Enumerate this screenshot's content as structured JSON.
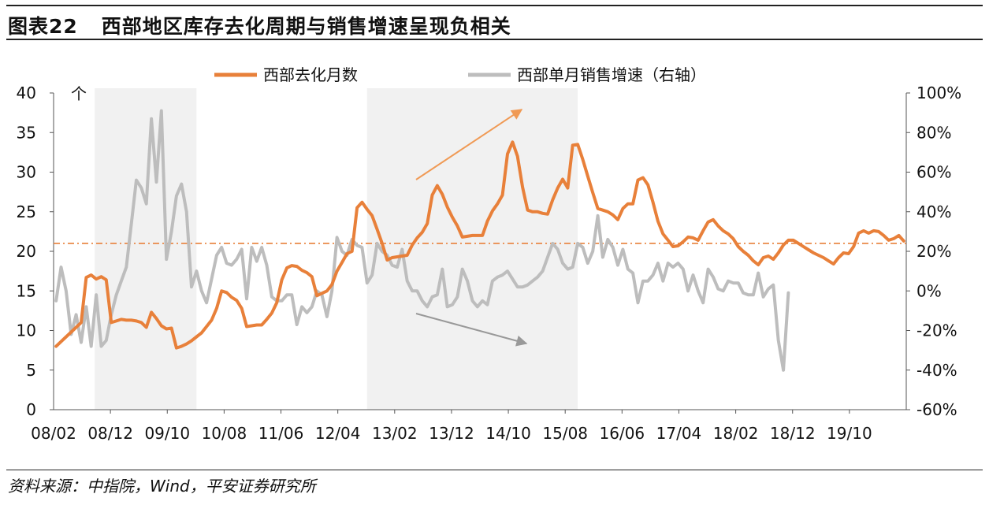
{
  "figure": {
    "number": "图表22",
    "title": "西部地区库存去化周期与销售增速呈现负相关",
    "source": "资料来源：中指院，Wind，平安证券研究所"
  },
  "chart_data": {
    "type": "line",
    "x_tick_labels": [
      "08/02",
      "08/12",
      "09/10",
      "10/08",
      "11/06",
      "12/04",
      "13/02",
      "13/12",
      "14/10",
      "15/08",
      "16/06",
      "17/04",
      "18/02",
      "18/12",
      "19/10"
    ],
    "left_axis": {
      "unit_label": "个",
      "ylim": [
        0,
        40
      ],
      "ticks": [
        "0",
        "5",
        "10",
        "15",
        "20",
        "25",
        "30",
        "35",
        "40"
      ]
    },
    "right_axis": {
      "ylim": [
        -60,
        100
      ],
      "ticks": [
        "-60%",
        "-40%",
        "-20%",
        "0%",
        "20%",
        "40%",
        "60%",
        "80%",
        "100%"
      ]
    },
    "reference_line_value": 21,
    "shaded_periods": [
      [
        8.2,
        28.5
      ],
      [
        62.5,
        104.5
      ]
    ],
    "colors": {
      "orange": "#e8803a",
      "gray": "#bdbdbd",
      "shade": "#f1f1f1",
      "arrow_up": "#f09a55",
      "arrow_down": "#999999"
    },
    "series": [
      {
        "name": "西部去化月数",
        "axis": "left",
        "values": [
          8,
          8.6,
          9.2,
          9.8,
          10.4,
          11,
          16.7,
          17,
          16.5,
          16.8,
          16.4,
          11,
          11.2,
          11.4,
          11.3,
          11.3,
          11.2,
          11,
          10.4,
          12.3,
          11.5,
          10.6,
          10.2,
          10.3,
          7.8,
          8,
          8.3,
          8.7,
          9.2,
          9.7,
          10.5,
          11.3,
          12.8,
          15,
          14.8,
          14.2,
          13.8,
          12.8,
          10.5,
          10.6,
          10.7,
          10.7,
          11.4,
          12.2,
          13.5,
          16.4,
          17.9,
          18.2,
          18.1,
          17.6,
          17.3,
          16.8,
          14.4,
          14.7,
          15,
          15.8,
          17.5,
          18.6,
          19.7,
          20,
          25.5,
          26.2,
          25.3,
          24.5,
          22.8,
          21,
          18.9,
          19.2,
          19.3,
          19.4,
          19.5,
          20.8,
          21.7,
          22.4,
          23.5,
          27.1,
          28.3,
          27.2,
          25.6,
          24.3,
          23.2,
          21.8,
          21.9,
          22,
          22,
          22,
          23.8,
          25.1,
          26,
          27.1,
          32.3,
          33.8,
          32,
          28.1,
          25.2,
          25,
          25,
          24.8,
          24.7,
          26.5,
          28,
          29.1,
          28,
          33.4,
          33.5,
          31.6,
          29.5,
          27.4,
          25.4,
          25.2,
          25,
          24.6,
          24,
          25.4,
          26,
          26,
          29,
          29.3,
          28.4,
          26.2,
          23.8,
          22.2,
          21.4,
          20.6,
          20.7,
          21.2,
          21.8,
          21.7,
          21.4,
          22.6,
          23.7,
          24,
          23.2,
          22.6,
          22.2,
          21.6,
          20.6,
          20,
          19.5,
          18.8,
          18.3,
          19.2,
          19.4,
          19,
          19.8,
          20.8,
          21.4,
          21.4,
          21,
          20.6,
          20.2,
          19.8,
          19.5,
          19.2,
          18.8,
          18.4,
          19.2,
          19.8,
          19.7,
          20.6,
          22.3,
          22.6,
          22.3,
          22.6,
          22.5,
          22,
          21.4,
          21.6,
          22,
          21.3
        ]
      },
      {
        "name": "西部单月销售增速（右轴）",
        "axis": "right",
        "values": [
          -5,
          12,
          0,
          -22,
          -12,
          -26,
          -8,
          -28,
          -2,
          -28,
          -25,
          -12,
          -2,
          5,
          12,
          34,
          56,
          52,
          44,
          87,
          55,
          91,
          16,
          30,
          48,
          54,
          40,
          2,
          10,
          0,
          -6,
          6,
          18,
          22,
          14,
          13,
          16,
          21,
          -4,
          22,
          15,
          22,
          13,
          -3,
          -5,
          -5,
          -2,
          -2,
          -17,
          -8,
          -11,
          -8,
          0,
          -2,
          -13,
          0,
          27,
          20,
          18,
          26,
          23,
          22,
          4,
          8,
          24,
          20,
          18,
          13,
          12,
          21,
          5,
          0,
          0,
          -5,
          -8,
          -3,
          -2,
          11,
          -8,
          -7,
          -3,
          11,
          5,
          -5,
          -8,
          -5,
          -7,
          5,
          7,
          8,
          10,
          6,
          2,
          2,
          3,
          5,
          7,
          10,
          17,
          24,
          21,
          14,
          11,
          12,
          24,
          22,
          14,
          20,
          38,
          17,
          26,
          22,
          13,
          21,
          11,
          9,
          -6,
          5,
          5,
          8,
          14,
          5,
          14,
          12,
          14,
          11,
          0,
          8,
          0,
          -6,
          11,
          7,
          1,
          0,
          5,
          4,
          4,
          -1,
          -2,
          -2,
          9,
          -3,
          1,
          3,
          -25,
          -40,
          -1
        ]
      }
    ],
    "legend_position": "top"
  }
}
